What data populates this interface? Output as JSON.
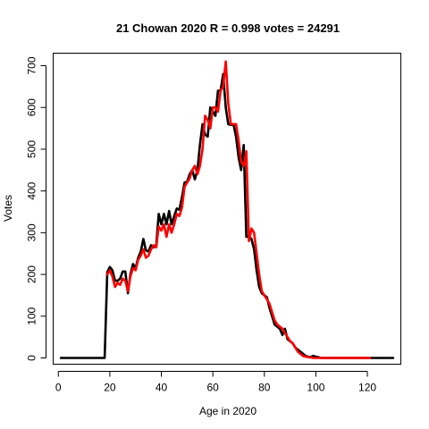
{
  "chart_data": {
    "type": "line",
    "title": "21 Chowan 2020 R = 0.998 votes = 24291",
    "xlabel": "Age in 2020",
    "ylabel": "Votes",
    "xlim": [
      -2,
      133
    ],
    "ylim": [
      -15,
      730
    ],
    "x_ticks": [
      0,
      20,
      40,
      60,
      80,
      100,
      120
    ],
    "y_ticks": [
      0,
      100,
      200,
      300,
      400,
      500,
      600,
      700
    ],
    "grid": false,
    "series": [
      {
        "color": "#000000",
        "x": [
          1,
          2,
          3,
          4,
          5,
          6,
          7,
          8,
          9,
          10,
          11,
          12,
          13,
          14,
          15,
          16,
          17,
          18,
          19,
          20,
          21,
          22,
          23,
          24,
          25,
          26,
          27,
          28,
          29,
          30,
          31,
          32,
          33,
          34,
          35,
          36,
          37,
          38,
          39,
          40,
          41,
          42,
          43,
          44,
          45,
          46,
          47,
          48,
          49,
          50,
          51,
          52,
          53,
          54,
          55,
          56,
          57,
          58,
          59,
          60,
          61,
          62,
          63,
          64,
          65,
          66,
          67,
          68,
          69,
          70,
          71,
          72,
          73,
          74,
          75,
          76,
          77,
          78,
          79,
          80,
          81,
          82,
          83,
          84,
          85,
          86,
          87,
          88,
          89,
          90,
          91,
          92,
          93,
          94,
          95,
          96,
          97,
          98,
          99,
          100,
          101,
          102,
          103,
          104,
          105,
          106,
          107,
          108,
          109,
          110,
          111,
          112,
          113,
          114,
          115,
          116,
          117,
          118,
          119,
          120,
          121,
          122,
          123,
          124,
          125,
          126,
          127,
          128,
          129,
          130
        ],
        "y": [
          0,
          0,
          0,
          0,
          0,
          0,
          0,
          0,
          0,
          0,
          0,
          0,
          0,
          0,
          0,
          0,
          0,
          0,
          205,
          218,
          210,
          185,
          185,
          190,
          207,
          207,
          155,
          200,
          225,
          215,
          240,
          255,
          285,
          258,
          255,
          270,
          265,
          270,
          345,
          320,
          345,
          320,
          352,
          320,
          340,
          358,
          355,
          385,
          420,
          422,
          440,
          450,
          428,
          450,
          510,
          560,
          535,
          530,
          600,
          590,
          580,
          640,
          640,
          680,
          600,
          560,
          558,
          560,
          530,
          480,
          450,
          510,
          290,
          290,
          285,
          260,
          210,
          170,
          155,
          150,
          145,
          120,
          100,
          80,
          75,
          70,
          55,
          70,
          45,
          40,
          35,
          25,
          20,
          15,
          10,
          5,
          3,
          2,
          5,
          3,
          2,
          0,
          0,
          0,
          0,
          0,
          0,
          0,
          0,
          0,
          0,
          0,
          0,
          0,
          0,
          0,
          0,
          0,
          0,
          0,
          0,
          0,
          0,
          0,
          0,
          0,
          0,
          0,
          0,
          0
        ]
      },
      {
        "color": "#ff0000",
        "x": [
          19,
          20,
          21,
          22,
          23,
          24,
          25,
          26,
          27,
          28,
          29,
          30,
          31,
          32,
          33,
          34,
          35,
          36,
          37,
          38,
          39,
          40,
          41,
          42,
          43,
          44,
          45,
          46,
          47,
          48,
          49,
          50,
          51,
          52,
          53,
          54,
          55,
          56,
          57,
          58,
          59,
          60,
          61,
          62,
          63,
          64,
          65,
          66,
          67,
          68,
          69,
          70,
          71,
          72,
          73,
          74,
          75,
          76,
          77,
          78,
          79,
          80,
          81,
          82,
          83,
          84,
          85,
          86,
          87,
          88,
          89,
          90,
          91,
          92,
          93,
          94,
          95,
          96,
          97,
          98,
          99,
          100,
          101,
          102,
          103,
          104,
          105,
          106,
          107,
          108,
          109,
          110,
          111,
          112,
          113,
          114,
          115,
          116,
          117,
          118,
          119,
          120,
          121
        ],
        "y": [
          200,
          210,
          195,
          170,
          180,
          175,
          190,
          185,
          160,
          195,
          215,
          210,
          235,
          245,
          260,
          240,
          245,
          260,
          270,
          265,
          315,
          305,
          320,
          290,
          320,
          300,
          320,
          345,
          340,
          360,
          410,
          420,
          430,
          450,
          460,
          440,
          460,
          500,
          580,
          570,
          550,
          600,
          600,
          590,
          640,
          650,
          710,
          610,
          560,
          560,
          560,
          520,
          470,
          460,
          495,
          280,
          310,
          300,
          250,
          200,
          160,
          150,
          140,
          130,
          110,
          90,
          80,
          75,
          70,
          60,
          50,
          40,
          35,
          25,
          15,
          10,
          5,
          3,
          2,
          1,
          0,
          0,
          0,
          0,
          0,
          0,
          0,
          0,
          0,
          0,
          0,
          0,
          0,
          0,
          0,
          0,
          0,
          0,
          0,
          0,
          0,
          0,
          0
        ]
      }
    ]
  }
}
